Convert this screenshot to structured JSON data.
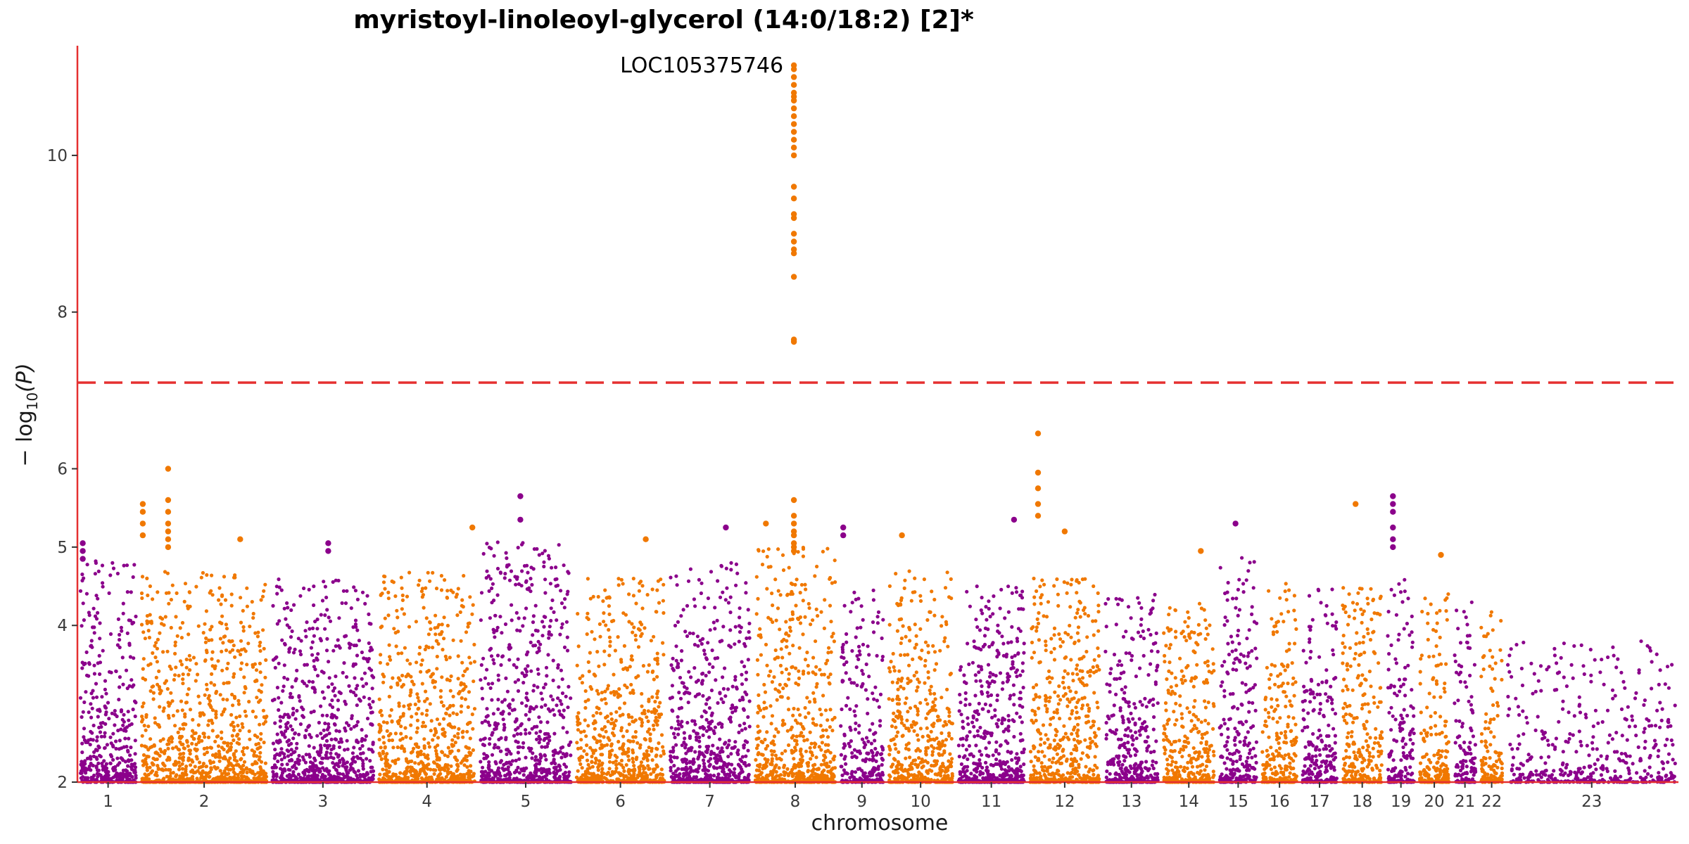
{
  "chart_data": {
    "type": "scatter",
    "title": "myristoyl-linoleoyl-glycerol (14:0/18:2) [2]*",
    "xlabel": "chromosome",
    "ylabel_text": "− log",
    "ylabel_sub": "10",
    "ylabel_arg": "(P)",
    "ylim": [
      2,
      11.4
    ],
    "yticks": [
      2,
      4,
      5,
      6,
      8,
      10
    ],
    "threshold": 7.1,
    "series_colors": [
      "#8b008b",
      "#f07800"
    ],
    "annotation": {
      "label": "LOC105375746",
      "chromosome": "8",
      "y": 11.15
    },
    "chromosomes": [
      {
        "label": "1",
        "bounds": [
          0,
          2.3
        ],
        "peak": 4.85,
        "density": 1.0
      },
      {
        "label": "2",
        "bounds": [
          2.3,
          7.2
        ],
        "peak": 4.7,
        "density": 1.0
      },
      {
        "label": "3",
        "bounds": [
          7.2,
          11.2
        ],
        "peak": 4.6,
        "density": 1.0
      },
      {
        "label": "4",
        "bounds": [
          11.2,
          15.0
        ],
        "peak": 4.7,
        "density": 1.0
      },
      {
        "label": "5",
        "bounds": [
          15.0,
          18.6
        ],
        "peak": 5.1,
        "density": 1.0
      },
      {
        "label": "6",
        "bounds": [
          18.6,
          22.1
        ],
        "peak": 4.6,
        "density": 1.0
      },
      {
        "label": "7",
        "bounds": [
          22.1,
          25.3
        ],
        "peak": 4.8,
        "density": 1.0
      },
      {
        "label": "8",
        "bounds": [
          25.3,
          28.5
        ],
        "peak": 5.0,
        "density": 1.0
      },
      {
        "label": "9",
        "bounds": [
          28.5,
          30.3
        ],
        "peak": 4.5,
        "density": 0.8
      },
      {
        "label": "10",
        "bounds": [
          30.3,
          32.9
        ],
        "peak": 4.7,
        "density": 1.0
      },
      {
        "label": "11",
        "bounds": [
          32.9,
          35.6
        ],
        "peak": 4.5,
        "density": 1.0
      },
      {
        "label": "12",
        "bounds": [
          35.6,
          38.4
        ],
        "peak": 4.6,
        "density": 1.0
      },
      {
        "label": "13",
        "bounds": [
          38.4,
          40.6
        ],
        "peak": 4.4,
        "density": 0.9
      },
      {
        "label": "14",
        "bounds": [
          40.6,
          42.7
        ],
        "peak": 4.3,
        "density": 0.9
      },
      {
        "label": "15",
        "bounds": [
          42.7,
          44.3
        ],
        "peak": 4.9,
        "density": 0.9
      },
      {
        "label": "16",
        "bounds": [
          44.3,
          45.8
        ],
        "peak": 4.6,
        "density": 0.9
      },
      {
        "label": "17",
        "bounds": [
          45.8,
          47.3
        ],
        "peak": 4.5,
        "density": 0.9
      },
      {
        "label": "18",
        "bounds": [
          47.3,
          49.0
        ],
        "peak": 4.5,
        "density": 0.9
      },
      {
        "label": "19",
        "bounds": [
          49.0,
          50.2
        ],
        "peak": 4.6,
        "density": 0.9
      },
      {
        "label": "20",
        "bounds": [
          50.2,
          51.5
        ],
        "peak": 4.4,
        "density": 0.9
      },
      {
        "label": "21",
        "bounds": [
          51.5,
          52.5
        ],
        "peak": 4.3,
        "density": 0.8
      },
      {
        "label": "22",
        "bounds": [
          52.5,
          53.5
        ],
        "peak": 4.2,
        "density": 0.8
      },
      {
        "label": "23",
        "bounds": [
          53.5,
          60.0
        ],
        "peak": 3.8,
        "density": 0.35
      }
    ],
    "notable_points": [
      {
        "chromosome": "8",
        "pos": 26.85,
        "y": [
          11.15,
          11.1,
          11.0,
          10.9,
          10.8,
          10.75,
          10.7,
          10.6,
          10.5,
          10.4,
          10.3,
          10.2,
          10.1,
          10.0,
          9.6,
          9.45,
          9.25,
          9.2,
          9.0,
          8.9,
          8.8,
          8.75,
          8.45,
          7.65,
          7.62
        ]
      },
      {
        "chromosome": "8",
        "pos": 26.85,
        "y": [
          5.6,
          5.4,
          5.3,
          5.2,
          5.15,
          5.05,
          5.0,
          4.95
        ]
      },
      {
        "chromosome": "2",
        "pos": 3.4,
        "y": [
          6.0,
          5.6,
          5.45,
          5.3,
          5.2,
          5.1,
          5.0
        ]
      },
      {
        "chromosome": "2",
        "pos": 2.45,
        "y": [
          5.55,
          5.45,
          5.3,
          5.15
        ]
      },
      {
        "chromosome": "12",
        "pos": 36.0,
        "y": [
          6.45,
          5.95,
          5.75,
          5.55,
          5.4
        ]
      },
      {
        "chromosome": "5",
        "pos": 16.6,
        "y": [
          5.65,
          5.35
        ]
      },
      {
        "chromosome": "19",
        "pos": 49.3,
        "y": [
          5.65,
          5.55,
          5.45,
          5.25,
          5.1,
          5.0
        ]
      },
      {
        "chromosome": "18",
        "pos": 47.9,
        "y": [
          5.55
        ]
      },
      {
        "chromosome": "11",
        "pos": 35.1,
        "y": [
          5.35
        ]
      },
      {
        "chromosome": "12",
        "pos": 37.0,
        "y": [
          5.2
        ]
      },
      {
        "chromosome": "7",
        "pos": 24.3,
        "y": [
          5.25
        ]
      },
      {
        "chromosome": "15",
        "pos": 43.4,
        "y": [
          5.3
        ]
      },
      {
        "chromosome": "1",
        "pos": 0.2,
        "y": [
          5.05,
          4.95,
          4.85
        ]
      },
      {
        "chromosome": "3",
        "pos": 9.4,
        "y": [
          5.05,
          4.95
        ]
      },
      {
        "chromosome": "2",
        "pos": 6.1,
        "y": [
          5.1
        ]
      },
      {
        "chromosome": "4",
        "pos": 14.8,
        "y": [
          5.25
        ]
      },
      {
        "chromosome": "6",
        "pos": 21.3,
        "y": [
          5.1
        ]
      },
      {
        "chromosome": "8",
        "pos": 25.8,
        "y": [
          5.3
        ]
      },
      {
        "chromosome": "9",
        "pos": 28.7,
        "y": [
          5.25,
          5.15
        ]
      },
      {
        "chromosome": "10",
        "pos": 30.9,
        "y": [
          5.15
        ]
      },
      {
        "chromosome": "14",
        "pos": 42.1,
        "y": [
          4.95
        ]
      },
      {
        "chromosome": "20",
        "pos": 51.1,
        "y": [
          4.9
        ]
      }
    ]
  }
}
